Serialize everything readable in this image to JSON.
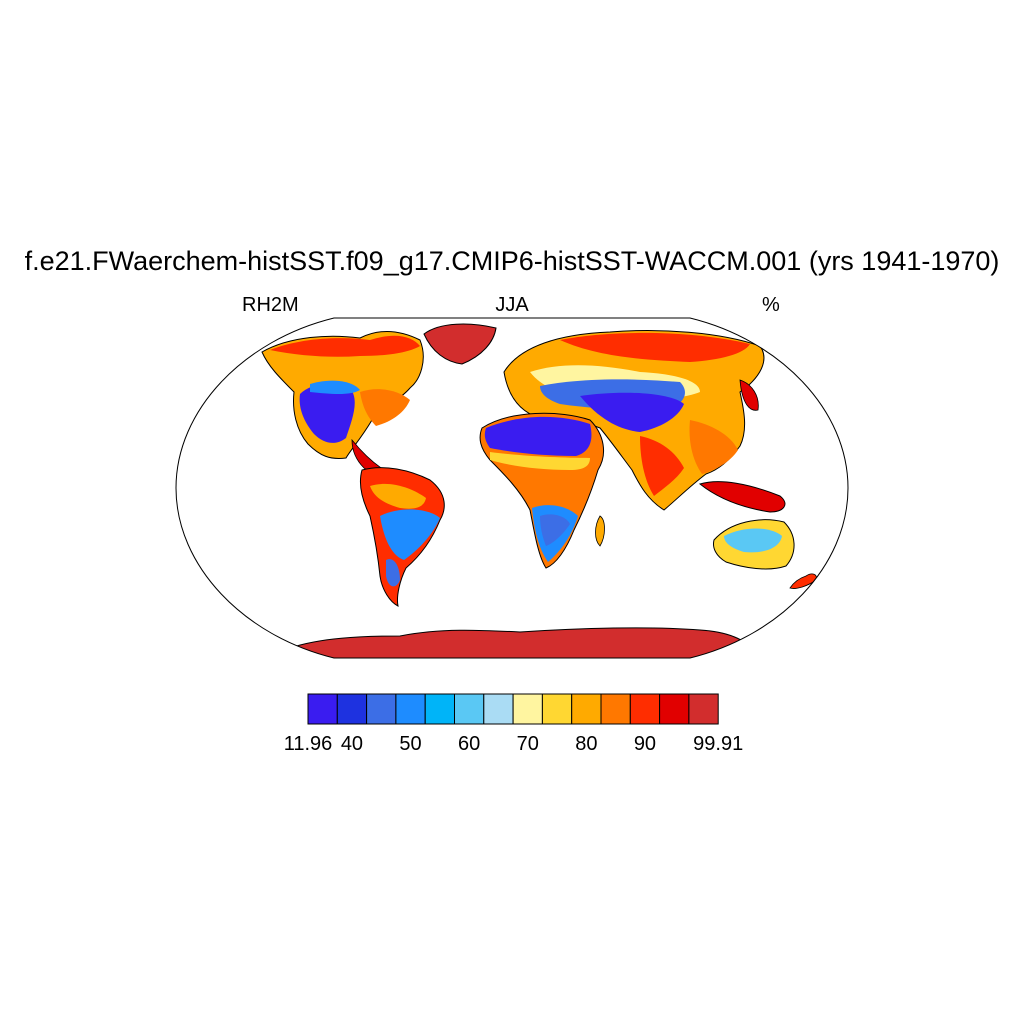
{
  "title": "f.e21.FWaerchem-histSST.f09_g17.CMIP6-histSST-WACCM.001 (yrs 1941-1970)",
  "subtitle_left": "RH2M",
  "subtitle_center": "JJA",
  "subtitle_right": "%",
  "colorbar": {
    "colors": [
      "#3a1cf0",
      "#1e32e0",
      "#3c6ee6",
      "#1e8cff",
      "#00b4f8",
      "#5ac8f4",
      "#aadcf4",
      "#fff5a0",
      "#ffd732",
      "#ffaa00",
      "#ff7800",
      "#ff2d00",
      "#e10000",
      "#d22d2d"
    ],
    "labels": [
      {
        "text": "11.96",
        "index": 0
      },
      {
        "text": "40",
        "index": 1.5
      },
      {
        "text": "50",
        "index": 3.5
      },
      {
        "text": "60",
        "index": 5.5
      },
      {
        "text": "70",
        "index": 7.5
      },
      {
        "text": "80",
        "index": 9.5
      },
      {
        "text": "90",
        "index": 11.5
      },
      {
        "text": "99.91",
        "index": 14
      }
    ]
  }
}
